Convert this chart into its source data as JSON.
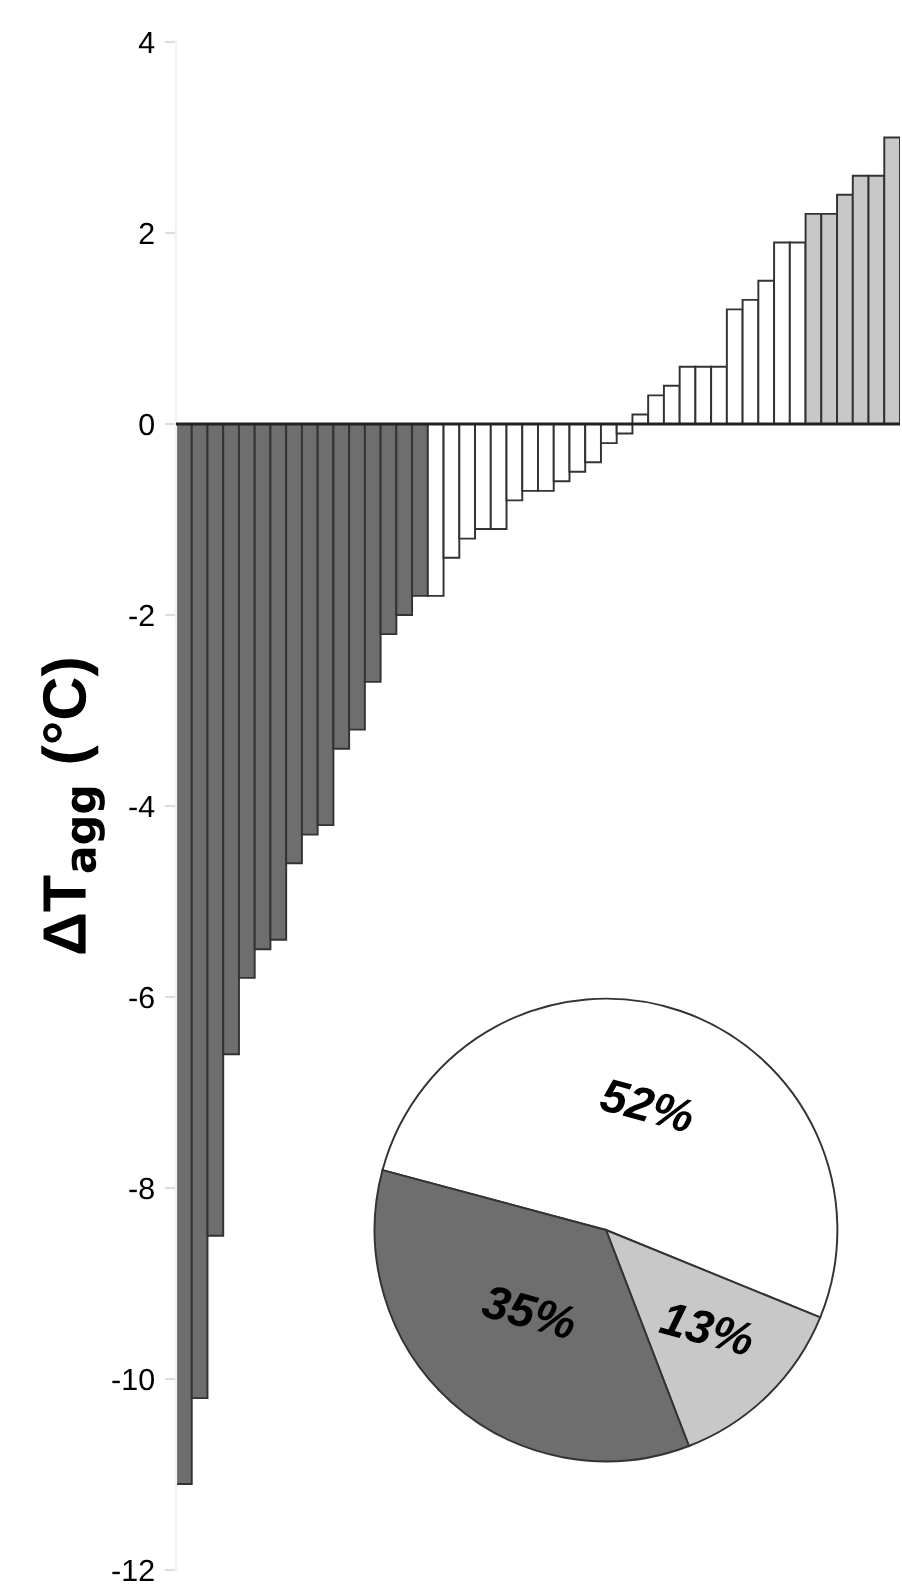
{
  "chart_data": [
    {
      "type": "bar",
      "ylabel": "ΔT$_{agg}$ (°C)",
      "categories": [
        null,
        null,
        null,
        null,
        null,
        null,
        null,
        null,
        null,
        null,
        null,
        null,
        null,
        null,
        null,
        null,
        null,
        null,
        null,
        null,
        null,
        null,
        null,
        null,
        null,
        null,
        null,
        null,
        null,
        null,
        null,
        null,
        null,
        null,
        null,
        null,
        null,
        null,
        null,
        null,
        null,
        null,
        null,
        null,
        null,
        null
      ],
      "values": [
        -11.1,
        -10.2,
        -8.5,
        -6.6,
        -5.8,
        -5.5,
        -5.4,
        -4.6,
        -4.3,
        -4.2,
        -3.4,
        -3.2,
        -2.7,
        -2.2,
        -2.0,
        -1.8,
        -1.8,
        -1.4,
        -1.2,
        -1.1,
        -1.1,
        -0.8,
        -0.7,
        -0.7,
        -0.6,
        -0.5,
        -0.4,
        -0.2,
        -0.1,
        0.1,
        0.3,
        0.4,
        0.6,
        0.6,
        0.6,
        1.2,
        1.3,
        1.5,
        1.9,
        1.9,
        2.2,
        2.2,
        2.4,
        2.6,
        2.6,
        3.0
      ],
      "colors": [
        "#6e6e6e",
        "#6e6e6e",
        "#6e6e6e",
        "#6e6e6e",
        "#6e6e6e",
        "#6e6e6e",
        "#6e6e6e",
        "#6e6e6e",
        "#6e6e6e",
        "#6e6e6e",
        "#6e6e6e",
        "#6e6e6e",
        "#6e6e6e",
        "#6e6e6e",
        "#6e6e6e",
        "#6e6e6e",
        "#ffffff",
        "#ffffff",
        "#ffffff",
        "#ffffff",
        "#ffffff",
        "#ffffff",
        "#ffffff",
        "#ffffff",
        "#ffffff",
        "#ffffff",
        "#ffffff",
        "#ffffff",
        "#ffffff",
        "#ffffff",
        "#ffffff",
        "#ffffff",
        "#ffffff",
        "#ffffff",
        "#ffffff",
        "#ffffff",
        "#ffffff",
        "#ffffff",
        "#ffffff",
        "#ffffff",
        "#c8c8c8",
        "#c8c8c8",
        "#c8c8c8",
        "#c8c8c8",
        "#c8c8c8",
        "#c8c8c8"
      ],
      "ylim": [
        -12,
        4
      ],
      "yticks": [
        -12,
        -10,
        -8,
        -6,
        -4,
        -2,
        0,
        2,
        4
      ]
    },
    {
      "type": "pie",
      "categories": [
        null,
        null,
        null
      ],
      "values": [
        52,
        13,
        35
      ],
      "colors": [
        "#ffffff",
        "#c8c8c8",
        "#6e6e6e"
      ],
      "value_labels": [
        "52%",
        "13%",
        "35%"
      ]
    }
  ]
}
